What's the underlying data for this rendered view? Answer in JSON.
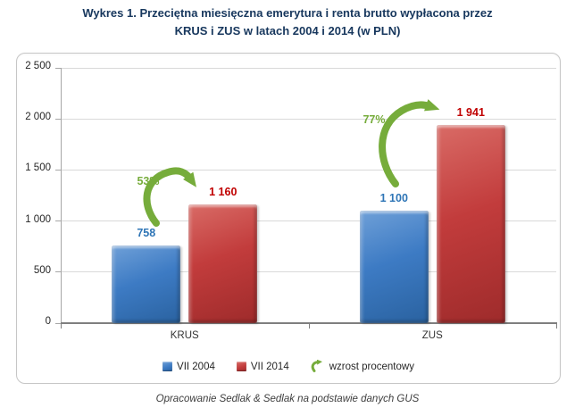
{
  "title": {
    "line1": "Wykres 1. Przeciętna miesięczna emerytura i renta brutto wypłacona przez",
    "line2": "KRUS i ZUS w latach 2004 i 2014 (w PLN)"
  },
  "caption": "Opracowanie Sedlak & Sedlak na podstawie danych GUS",
  "legend": {
    "items": [
      {
        "label": "VII 2004",
        "swatch": "blue-square"
      },
      {
        "label": "VII 2014",
        "swatch": "red-square"
      },
      {
        "label": "wzrost procentowy",
        "swatch": "green-curved-arrow"
      }
    ]
  },
  "colors": {
    "title": "#17375d",
    "green": "#76ac3b",
    "grid": "#d9d9d9",
    "axis": "#7f7f7f",
    "tick_text": "#262626"
  },
  "chart_data": {
    "type": "bar",
    "title": "Wykres 1. Przeciętna miesięczna emerytura i renta brutto wypłacona przez KRUS i ZUS w latach 2004 i 2014 (w PLN)",
    "categories": [
      "KRUS",
      "ZUS"
    ],
    "series": [
      {
        "name": "VII 2004",
        "values": [
          758,
          1100
        ],
        "labels": [
          "758",
          "1 100"
        ],
        "color": "#3d7bc4",
        "color_light": "#6fa0d8",
        "color_dark": "#2a62a0",
        "label_color": "#2e75b6"
      },
      {
        "name": "VII 2014",
        "values": [
          1160,
          1941
        ],
        "labels": [
          "1 160",
          "1 941"
        ],
        "color": "#c23c3c",
        "color_light": "#d96b66",
        "color_dark": "#9e2b2b",
        "label_color": "#c00000"
      }
    ],
    "growth": [
      {
        "category": "KRUS",
        "percent": "53%"
      },
      {
        "category": "ZUS",
        "percent": "77%"
      }
    ],
    "xlabel": "",
    "ylabel": "",
    "ylim": [
      0,
      2500
    ],
    "yticks": [
      {
        "value": 0,
        "label": "0"
      },
      {
        "value": 500,
        "label": "500"
      },
      {
        "value": 1000,
        "label": "1 000"
      },
      {
        "value": 1500,
        "label": "1 500"
      },
      {
        "value": 2000,
        "label": "2 000"
      },
      {
        "value": 2500,
        "label": "2 500"
      }
    ],
    "grid": true,
    "legend_position": "bottom"
  }
}
